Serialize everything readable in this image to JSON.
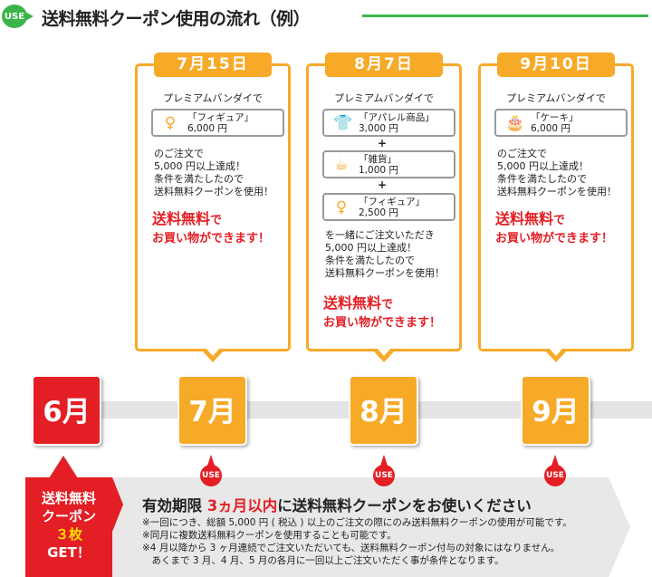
{
  "header": {
    "badge": "USE",
    "title": "送料無料クーポン使用の流れ（例）"
  },
  "cards": [
    {
      "date": "7月15日",
      "lead": "プレミアムバンダイで",
      "items": [
        {
          "icon": "figure-icon",
          "name": "「フィギュア」",
          "price": "6,000 円"
        }
      ],
      "text": [
        "のご注文で",
        "5,000 円以上達成！",
        "条件を満たしたので",
        "送料無料クーポンを使用！"
      ],
      "red1": "送料無料",
      "red1b": "で",
      "red2": "お買い物ができます！"
    },
    {
      "date": "8月7日",
      "lead": "プレミアムバンダイで",
      "items": [
        {
          "icon": "tshirt-icon",
          "name": "「アパレル商品」",
          "price": "3,000 円"
        },
        {
          "icon": "mug-icon",
          "name": "「雑貨」",
          "price": "1,000 円"
        },
        {
          "icon": "figure-icon",
          "name": "「フィギュア」",
          "price": "2,500 円"
        }
      ],
      "plus": "+",
      "text": [
        "を一緒にご注文いただき",
        "5,000 円以上達成！",
        "条件を満たしたので",
        "送料無料クーポンを使用！"
      ],
      "red1": "送料無料",
      "red1b": "で",
      "red2": "お買い物ができます！"
    },
    {
      "date": "9月10日",
      "lead": "プレミアムバンダイで",
      "items": [
        {
          "icon": "cake-icon",
          "name": "「ケーキ」",
          "price": "6,000 円"
        }
      ],
      "text": [
        "のご注文で",
        "5,000 円以上達成！",
        "条件を満たしたので",
        "送料無料クーポンを使用！"
      ],
      "red1": "送料無料",
      "red1b": "で",
      "red2": "お買い物ができます！"
    }
  ],
  "months": [
    "6月",
    "7月",
    "8月",
    "9月"
  ],
  "use_bubble": "USE",
  "badge": {
    "l1": "送料無料",
    "l2": "クーポン",
    "l3": "３枚",
    "l4": "GET！"
  },
  "notice": {
    "pre": "有効期限 ",
    "hl": "3ヵ月以内",
    "post": "に送料無料クーポンをお使いください",
    "notes": [
      "※一回につき、総額 5,000 円 ( 税込 ) 以上のご注文の際にのみ送料無料クーポンの使用が可能です。",
      "※同月に複数送料無料クーポンを使用することも可能です。",
      "※4 月以降から 3 ヶ月連続でご注文いただいても、送料無料クーポン付与の対象にはなりません。",
      "　あくまで 3 月、4 月、5 月の各月に一回以上ご注文いただく事が条件となります。"
    ]
  },
  "colors": {
    "green": "#3bb54a",
    "orange": "#f7a928",
    "red": "#e31e24",
    "gray": "#e8e8e8"
  }
}
